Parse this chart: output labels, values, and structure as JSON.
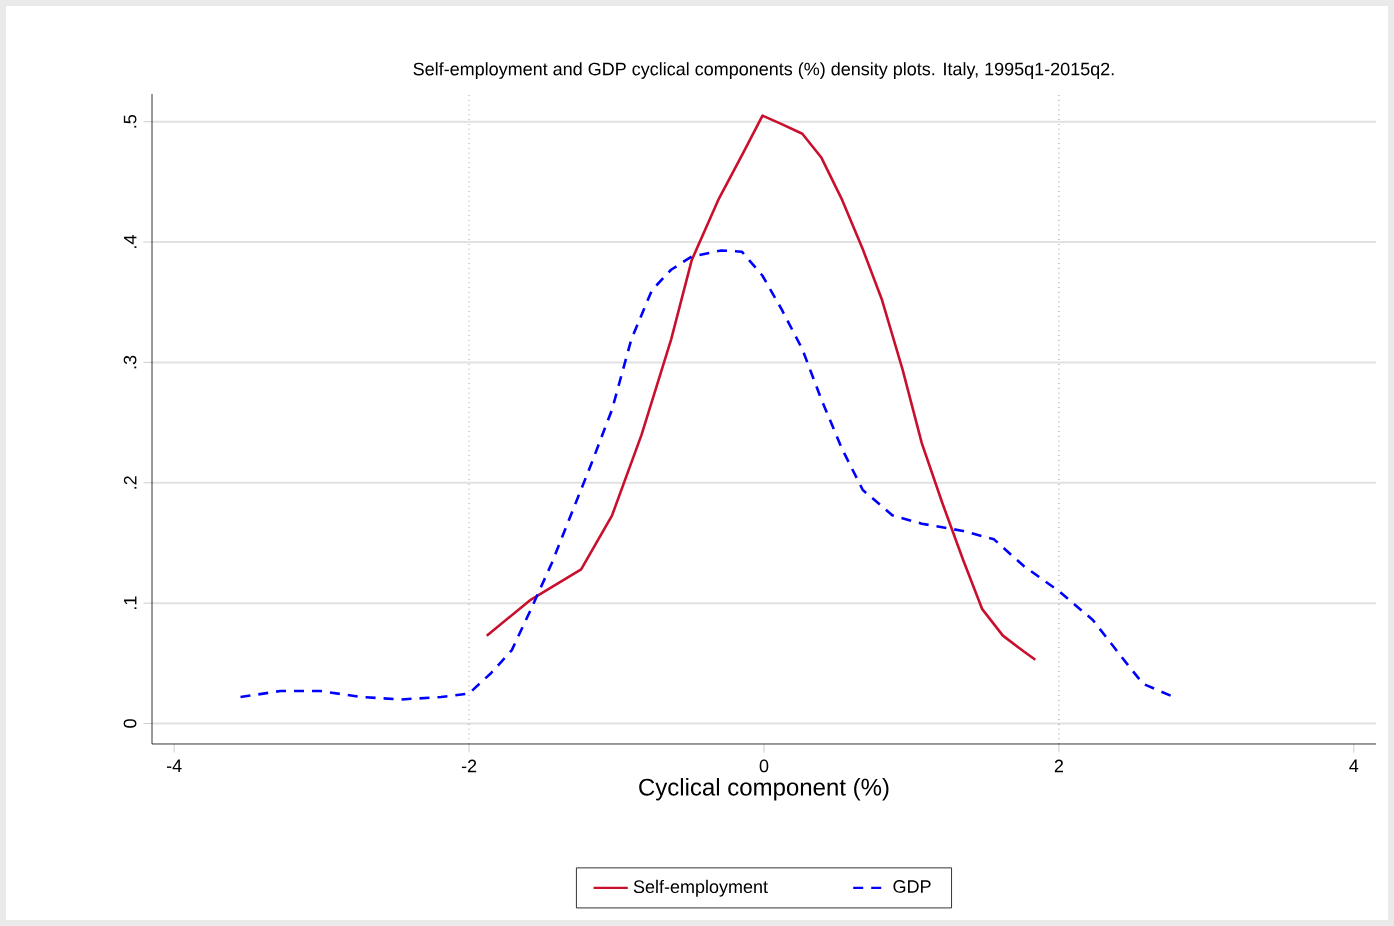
{
  "chart_data": {
    "type": "line",
    "title": "Self-employment and GDP cyclical components (%) density plots. Italy, 1995q1-2015q2.",
    "xlabel": "Cyclical component (%)",
    "xlim": [
      -4.15,
      4.15
    ],
    "ylim": [
      -0.017,
      0.523
    ],
    "xticks": [
      -4,
      -2,
      0,
      2,
      4
    ],
    "yticks": [
      0,
      {
        "value": 0.1,
        "label": ".1"
      },
      {
        "value": 0.2,
        "label": ".2"
      },
      {
        "value": 0.3,
        "label": ".3"
      },
      {
        "value": 0.4,
        "label": ".4"
      },
      {
        "value": 0.5,
        "label": ".5"
      }
    ],
    "grid": "y",
    "legend": "bottom",
    "marker": "none",
    "ref_lines": [
      {
        "axis": "x",
        "value": -2,
        "line_style": "dotted",
        "color": "#555555"
      },
      {
        "axis": "x",
        "value": 2,
        "line_style": "dotted",
        "color": "#555555"
      }
    ],
    "series": [
      {
        "name": "Self-employment",
        "color": "#c8102e",
        "line_style": "solid",
        "x": [
          -1.88,
          -1.58,
          -1.24,
          -1.03,
          -0.83,
          -0.63,
          -0.49,
          -0.31,
          -0.15,
          -0.01,
          0.12,
          0.26,
          0.39,
          0.53,
          0.67,
          0.8,
          0.94,
          1.07,
          1.21,
          1.35,
          1.48,
          1.62,
          1.76,
          1.84
        ],
        "values": [
          0.073,
          0.103,
          0.128,
          0.173,
          0.24,
          0.319,
          0.385,
          0.435,
          0.472,
          0.505,
          0.498,
          0.49,
          0.47,
          0.435,
          0.394,
          0.352,
          0.294,
          0.233,
          0.183,
          0.136,
          0.095,
          0.073,
          0.06,
          0.053
        ]
      },
      {
        "name": "GDP",
        "color": "#0000ff",
        "line_style": "dashed",
        "x": [
          -3.55,
          -3.28,
          -3.01,
          -2.73,
          -2.46,
          -2.19,
          -2.0,
          -1.85,
          -1.71,
          -1.58,
          -1.44,
          -1.31,
          -1.17,
          -1.03,
          -0.9,
          -0.76,
          -0.63,
          -0.49,
          -0.29,
          -0.15,
          -0.01,
          0.12,
          0.26,
          0.39,
          0.53,
          0.67,
          0.87,
          1.07,
          1.35,
          1.56,
          1.76,
          2.0,
          2.23,
          2.44,
          2.57,
          2.78
        ],
        "values": [
          0.022,
          0.027,
          0.027,
          0.022,
          0.02,
          0.022,
          0.025,
          0.042,
          0.061,
          0.095,
          0.133,
          0.173,
          0.216,
          0.261,
          0.319,
          0.36,
          0.377,
          0.388,
          0.393,
          0.392,
          0.372,
          0.344,
          0.311,
          0.269,
          0.228,
          0.194,
          0.173,
          0.166,
          0.16,
          0.153,
          0.131,
          0.11,
          0.086,
          0.053,
          0.033,
          0.022
        ]
      }
    ]
  }
}
